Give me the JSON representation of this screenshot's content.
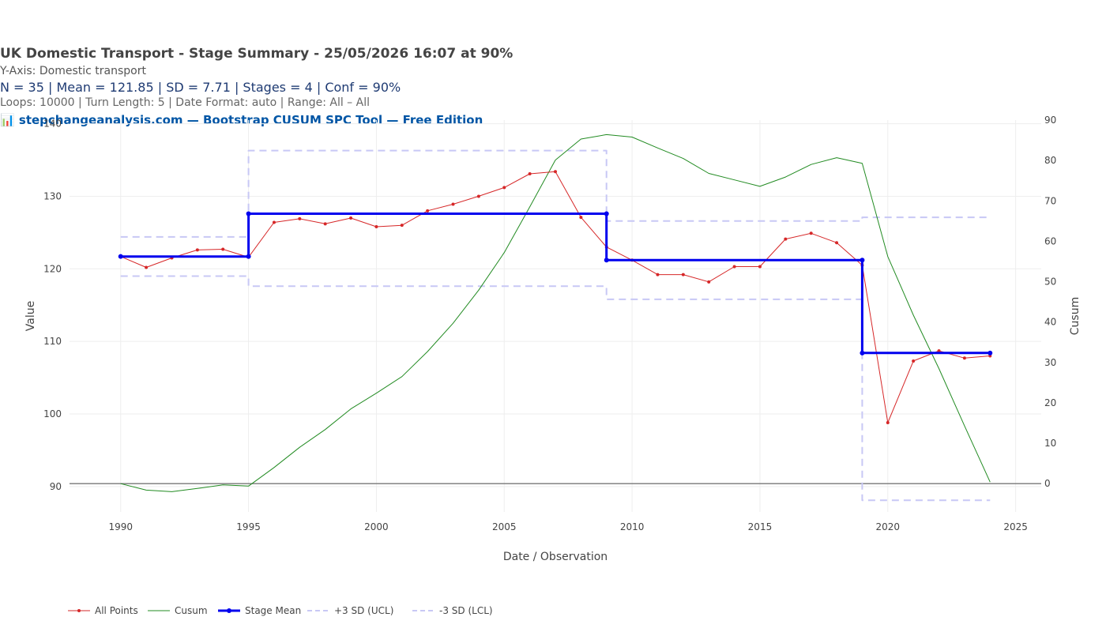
{
  "header": {
    "title": "UK Domestic Transport  - Stage Summary - 25/05/2026 16:07  at 90%",
    "yaxis_line": "Y-Axis: Domestic transport",
    "stats_line": "N = 35  |  Mean = 121.85  |  SD = 7.71  |  Stages = 4  |  Conf = 90%",
    "params_line": "Loops: 10000  |  Turn Length: 5  |  Date Format: auto  |  Range: All – All",
    "brand_line": "📊 stepchangeanalysis.com — Bootstrap CUSUM SPC Tool — Free Edition"
  },
  "chart_data": {
    "type": "line",
    "xlabel": "Date / Observation",
    "ylabel": "Value",
    "y2label": "Cusum",
    "xlim": [
      1988,
      2026
    ],
    "ylim": [
      86.5,
      140.5
    ],
    "y2lim": [
      -7,
      90
    ],
    "x_ticks": [
      1990,
      1995,
      2000,
      2005,
      2010,
      2015,
      2020,
      2025
    ],
    "y_ticks": [
      90,
      100,
      110,
      120,
      130,
      140
    ],
    "y2_ticks": [
      0,
      10,
      20,
      30,
      40,
      50,
      60,
      70,
      80,
      90
    ],
    "colors": {
      "all_points": "#d62728",
      "cusum": "#228b22",
      "stage_mean": "#0000ee",
      "limits": "#c8c8f5",
      "baseline": "#777777",
      "grid": "#eeeeee"
    },
    "series": [
      {
        "name": "All Points",
        "axis": "y",
        "x": [
          1990,
          1991,
          1992,
          1993,
          1994,
          1995,
          1996,
          1997,
          1998,
          1999,
          2000,
          2001,
          2002,
          2003,
          2004,
          2005,
          2006,
          2007,
          2008,
          2009,
          2010,
          2011,
          2012,
          2013,
          2014,
          2015,
          2016,
          2017,
          2018,
          2019,
          2020,
          2021,
          2022,
          2023,
          2024
        ],
        "values": [
          121.7,
          120.2,
          121.5,
          122.6,
          122.7,
          121.6,
          126.4,
          126.9,
          126.2,
          127.0,
          125.8,
          126.0,
          128.0,
          128.9,
          130.0,
          131.2,
          133.1,
          133.4,
          127.1,
          123.0,
          121.2,
          119.2,
          119.2,
          118.2,
          120.3,
          120.3,
          124.1,
          124.9,
          123.6,
          120.5,
          98.8,
          107.3,
          108.7,
          107.7,
          108.0
        ]
      },
      {
        "name": "Cusum",
        "axis": "y2",
        "x": [
          1990,
          1991,
          1992,
          1993,
          1994,
          1995,
          1996,
          1997,
          1998,
          1999,
          2000,
          2001,
          2002,
          2003,
          2004,
          2005,
          2006,
          2007,
          2008,
          2009,
          2010,
          2011,
          2012,
          2013,
          2014,
          2015,
          2016,
          2017,
          2018,
          2019,
          2020,
          2021,
          2022,
          2023,
          2024
        ],
        "values": [
          0,
          -1.6,
          -2.0,
          -1.2,
          -0.3,
          -0.6,
          4.0,
          9.0,
          13.4,
          18.5,
          22.4,
          26.5,
          32.7,
          39.7,
          47.9,
          57.2,
          68.5,
          80.1,
          85.3,
          86.4,
          85.8,
          83.1,
          80.5,
          76.8,
          75.2,
          73.6,
          75.9,
          79.0,
          80.7,
          79.3,
          56.2,
          41.7,
          28.5,
          14.3,
          0.4
        ]
      },
      {
        "name": "Stage Mean",
        "axis": "y",
        "x": [
          1990,
          1995,
          1995,
          2009,
          2009,
          2019,
          2019,
          2024
        ],
        "values": [
          121.7,
          121.7,
          127.6,
          127.6,
          121.2,
          121.2,
          108.4,
          108.4
        ]
      },
      {
        "name": "+3 SD (UCL)",
        "axis": "y",
        "x": [
          1990,
          1995,
          1995,
          2009,
          2009,
          2019,
          2019,
          2024
        ],
        "values": [
          124.4,
          124.4,
          136.3,
          136.3,
          126.6,
          126.6,
          127.1,
          127.1
        ]
      },
      {
        "name": "-3 SD (LCL)",
        "axis": "y",
        "x": [
          1990,
          1995,
          1995,
          2009,
          2009,
          2019,
          2019,
          2024
        ],
        "values": [
          119.0,
          119.0,
          117.6,
          117.6,
          115.8,
          115.8,
          88.1,
          88.1
        ]
      }
    ],
    "legend": [
      "All Points",
      "Cusum",
      "Stage Mean",
      "+3 SD (UCL)",
      "-3 SD (LCL)"
    ],
    "legend_position": "bottom-left",
    "grid": true
  }
}
